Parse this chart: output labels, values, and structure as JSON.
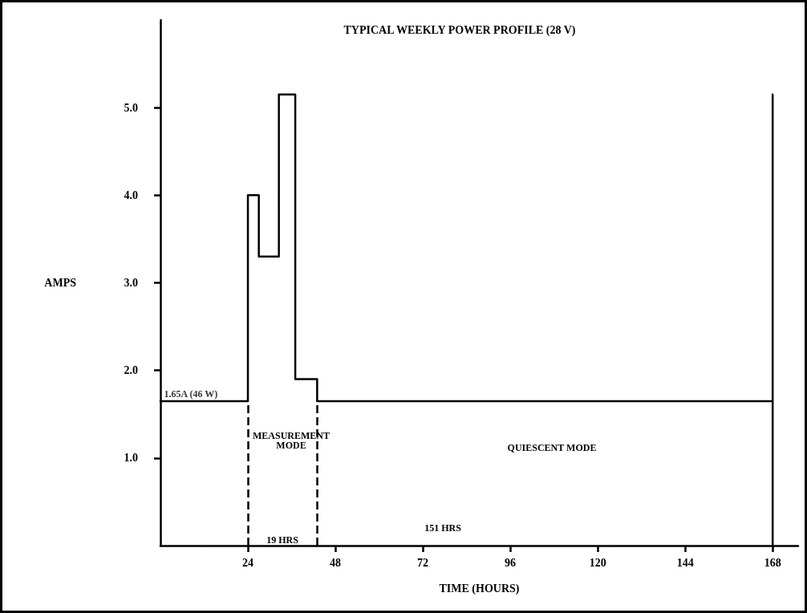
{
  "chart_data": {
    "type": "line",
    "title": "TYPICAL WEEKLY POWER PROFILE (28 V)",
    "xlabel": "TIME (HOURS)",
    "ylabel": "AMPS",
    "x": [
      0,
      24,
      24,
      27,
      27,
      32.5,
      32.5,
      37,
      37,
      43,
      43,
      168,
      168,
      168
    ],
    "values": [
      1.65,
      1.65,
      4.0,
      4.0,
      3.3,
      3.3,
      5.15,
      5.15,
      1.9,
      1.9,
      1.65,
      1.65,
      0,
      5.15
    ],
    "color": "#000000",
    "marker": "none",
    "line_style": "solid",
    "xlim": [
      0,
      175
    ],
    "xticks": [
      24,
      48,
      72,
      96,
      120,
      144,
      168
    ],
    "ylim": [
      0,
      6
    ],
    "yticks": [
      {
        "value": 1,
        "label": "1.0"
      },
      {
        "value": 2,
        "label": "2.0"
      },
      {
        "value": 3,
        "label": "3.0"
      },
      {
        "value": 4,
        "label": "4.0"
      },
      {
        "value": 5,
        "label": "5.0"
      }
    ],
    "grid": false,
    "ref_lines": [
      {
        "axis": "x",
        "value": 24,
        "label": null,
        "line_style": "dashed",
        "color": "#000000"
      },
      {
        "axis": "x",
        "value": 43,
        "label": null,
        "line_style": "dashed",
        "color": "#000000"
      }
    ],
    "annotations": [
      {
        "text": "1.65A (46 W)",
        "x": 1,
        "y": 1.65
      },
      "MEASUREMENT\nMODE",
      "QUIESCENT MODE",
      "19 HRS",
      "151 HRS"
    ]
  }
}
